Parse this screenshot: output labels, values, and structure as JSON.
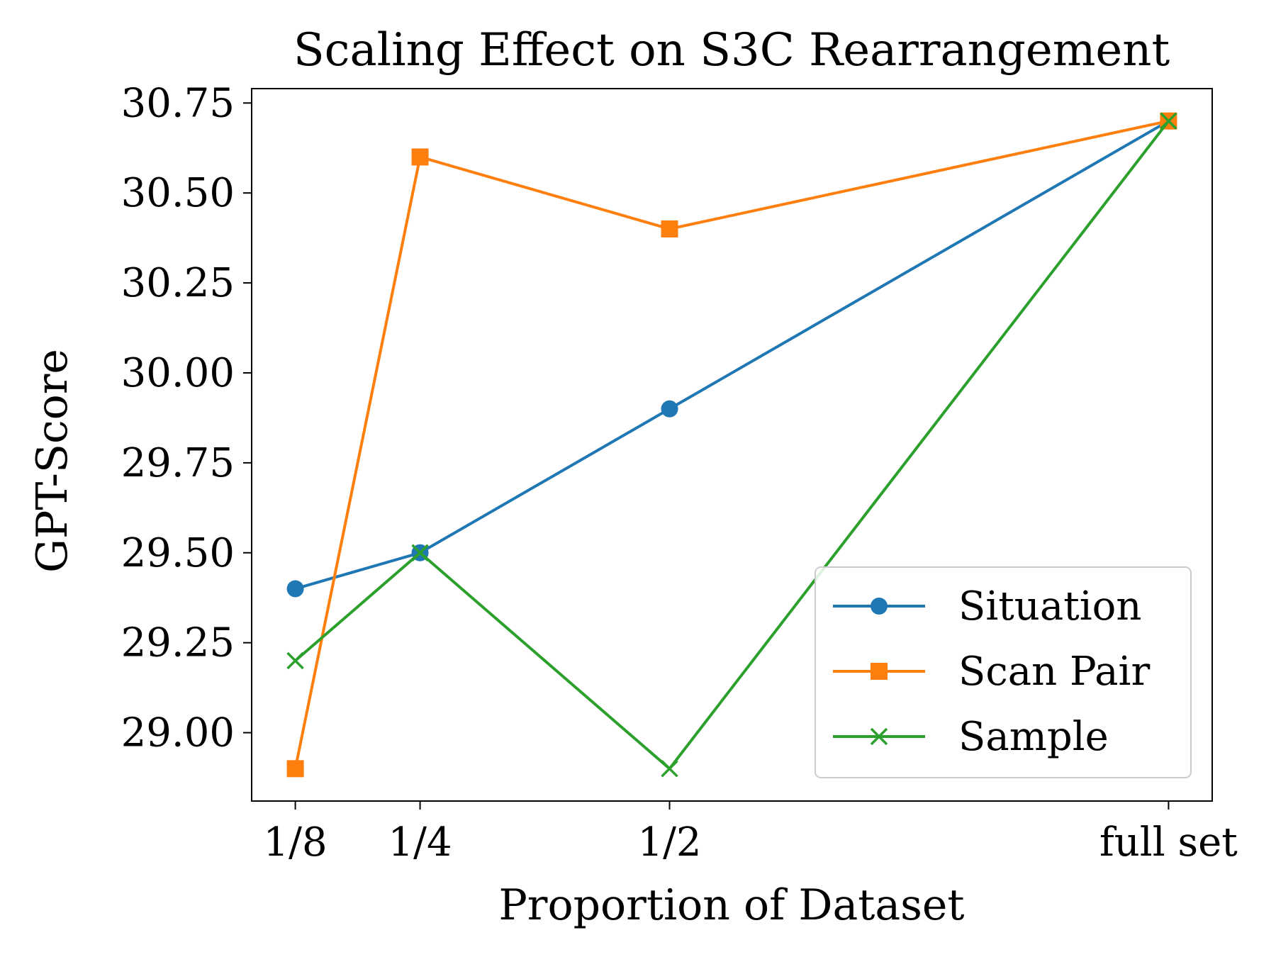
{
  "chart_data": {
    "type": "line",
    "title": "Scaling Effect on S3C Rearrangement",
    "xlabel": "Proportion of Dataset",
    "ylabel": "GPT-Score",
    "categories": [
      "1/8",
      "1/4",
      "1/2",
      "full set"
    ],
    "x": [
      0.125,
      0.25,
      0.5,
      1.0
    ],
    "xlim": [
      0.08125,
      1.04375
    ],
    "ylim": [
      28.81,
      30.79
    ],
    "yticks": [
      29.0,
      29.25,
      29.5,
      29.75,
      30.0,
      30.25,
      30.5,
      30.75
    ],
    "ytick_labels": [
      "29.00",
      "29.25",
      "29.50",
      "29.75",
      "30.00",
      "30.25",
      "30.50",
      "30.75"
    ],
    "grid": false,
    "legend_position": "lower right",
    "series": [
      {
        "name": "Situation",
        "color": "#1f77b4",
        "marker": "circle",
        "values": [
          29.4,
          29.5,
          29.9,
          30.7
        ]
      },
      {
        "name": "Scan Pair",
        "color": "#ff7f0e",
        "marker": "square",
        "values": [
          28.9,
          30.6,
          30.4,
          30.7
        ]
      },
      {
        "name": "Sample",
        "color": "#2ca02c",
        "marker": "x",
        "values": [
          29.2,
          29.5,
          28.9,
          30.7
        ]
      }
    ]
  }
}
